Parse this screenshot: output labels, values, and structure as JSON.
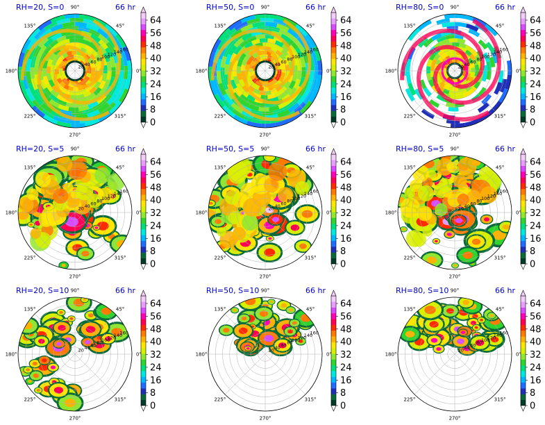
{
  "figure": {
    "time_label": "66 hr",
    "colorbar_ticks": [
      "0",
      "8",
      "16",
      "24",
      "32",
      "40",
      "48",
      "56",
      "64"
    ],
    "colorbar_colors": [
      "#003b2a",
      "#0a6b3a",
      "#1f2fb8",
      "#1f6cff",
      "#00b8ff",
      "#00e8e0",
      "#00e07a",
      "#2fd42f",
      "#8fe82f",
      "#d8f000",
      "#ffe600",
      "#ffb300",
      "#ff7a00",
      "#ff2a00",
      "#ff0055",
      "#ff00b4",
      "#d84bff",
      "#e79cff",
      "#f3cdf8"
    ],
    "angle_labels": [
      "0°",
      "45°",
      "90°",
      "135°",
      "180°",
      "225°",
      "270°",
      "315°"
    ],
    "radial_labels": [
      "20",
      "40",
      "60",
      "80",
      "100",
      "120",
      "140",
      "160"
    ]
  },
  "chart_data": [
    {
      "type": "heatmap",
      "projection": "polar",
      "title": "RH=20, S=0",
      "time": "66 hr",
      "colorbar": {
        "min": 0,
        "max": 64,
        "extend": "both"
      }
    },
    {
      "type": "heatmap",
      "projection": "polar",
      "title": "RH=50, S=0",
      "time": "66 hr",
      "colorbar": {
        "min": 0,
        "max": 64,
        "extend": "both"
      }
    },
    {
      "type": "heatmap",
      "projection": "polar",
      "title": "RH=80, S=0",
      "time": "66 hr",
      "colorbar": {
        "min": 0,
        "max": 64,
        "extend": "both"
      }
    },
    {
      "type": "heatmap",
      "projection": "polar",
      "title": "RH=20, S=5",
      "time": "66 hr",
      "colorbar": {
        "min": 0,
        "max": 64,
        "extend": "both"
      }
    },
    {
      "type": "heatmap",
      "projection": "polar",
      "title": "RH=50, S=5",
      "time": "66 hr",
      "colorbar": {
        "min": 0,
        "max": 64,
        "extend": "both"
      }
    },
    {
      "type": "heatmap",
      "projection": "polar",
      "title": "RH=80, S=5",
      "time": "66 hr",
      "colorbar": {
        "min": 0,
        "max": 64,
        "extend": "both"
      }
    },
    {
      "type": "heatmap",
      "projection": "polar",
      "title": "RH=20, S=10",
      "time": "66 hr",
      "colorbar": {
        "min": 0,
        "max": 64,
        "extend": "both"
      }
    },
    {
      "type": "heatmap",
      "projection": "polar",
      "title": "RH=50, S=10",
      "time": "66 hr",
      "colorbar": {
        "min": 0,
        "max": 64,
        "extend": "both"
      }
    },
    {
      "type": "heatmap",
      "projection": "polar",
      "title": "RH=80, S=10",
      "time": "66 hr",
      "colorbar": {
        "min": 0,
        "max": 64,
        "extend": "both"
      }
    }
  ]
}
